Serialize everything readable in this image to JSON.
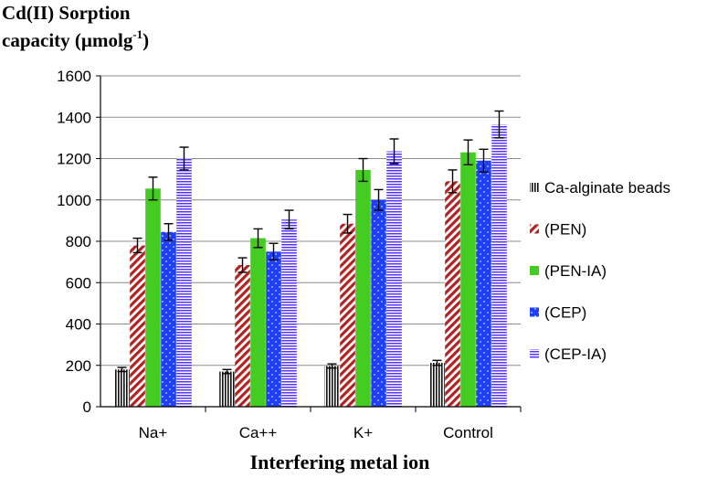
{
  "chart_data": {
    "type": "bar",
    "title_line1": "Cd(II) Sorption",
    "title_line2": "capacity (µmolg",
    "title_sup": "-1",
    "title_close": ")",
    "xlabel": "Interfering metal ion",
    "ylabel": "",
    "ylim": [
      0,
      1600
    ],
    "yticks": [
      0,
      200,
      400,
      600,
      800,
      1000,
      1200,
      1400,
      1600
    ],
    "grid": true,
    "legend_position": "right",
    "categories": [
      "Na+",
      "Ca++",
      "K+",
      "Control"
    ],
    "series": [
      {
        "name": "Ca-alginate beads",
        "pattern": "vertical-stripes",
        "color": "#000000",
        "values": [
          180,
          170,
          197,
          212
        ],
        "errors": [
          10,
          10,
          10,
          12
        ]
      },
      {
        "name": "(PEN)",
        "pattern": "diagonal-stripes",
        "color": "#b22222",
        "values": [
          780,
          685,
          885,
          1090
        ],
        "errors": [
          35,
          35,
          45,
          55
        ]
      },
      {
        "name": "(PEN-IA)",
        "pattern": "solid",
        "color": "#44cc22",
        "values": [
          1055,
          815,
          1145,
          1230
        ],
        "errors": [
          55,
          45,
          55,
          60
        ]
      },
      {
        "name": "(CEP)",
        "pattern": "dotted",
        "color": "#1f3fff",
        "values": [
          845,
          750,
          1000,
          1190
        ],
        "errors": [
          40,
          40,
          50,
          55
        ]
      },
      {
        "name": "(CEP-IA)",
        "pattern": "horizontal-stripes",
        "color": "#5533ff",
        "values": [
          1200,
          905,
          1235,
          1365
        ],
        "errors": [
          55,
          45,
          60,
          65
        ]
      }
    ]
  }
}
